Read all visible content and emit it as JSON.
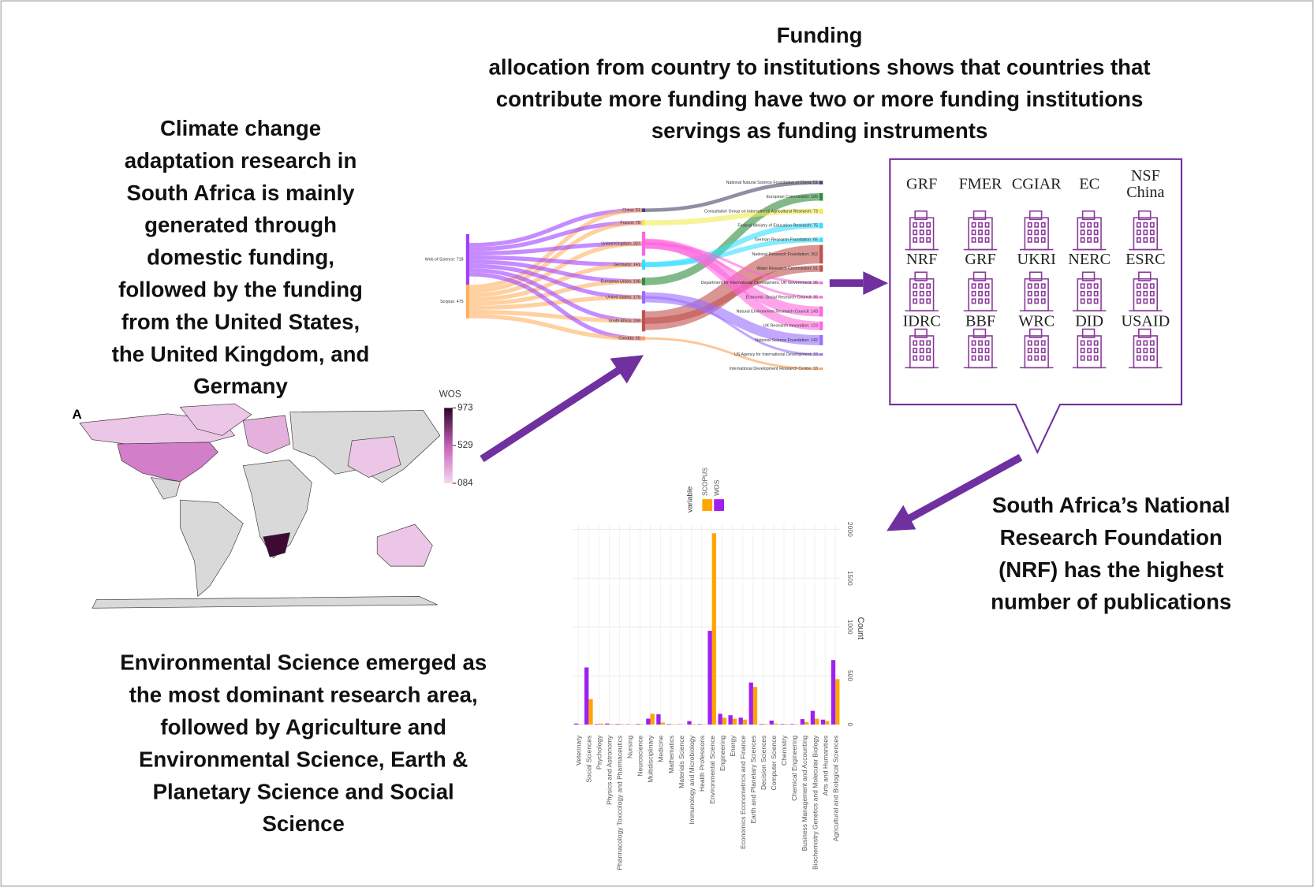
{
  "captions": {
    "funding": [
      "Funding",
      "allocation from country to institutions shows that countries that",
      "contribute more funding have two or more funding institutions",
      "servings as funding instruments"
    ],
    "climate": [
      "Climate change",
      "adaptation research in",
      "South Africa is mainly",
      "generated through",
      "domestic funding,",
      "followed by the funding",
      "from the United States,",
      "the United Kingdom, and",
      "Germany"
    ],
    "nrf": [
      "South Africa’s National",
      "Research Foundation",
      "(NRF) has the highest",
      "number of publications"
    ],
    "science": [
      "Environmental Science emerged as",
      "the most dominant research area,",
      "followed by Agriculture and",
      "Environmental Science, Earth &",
      "Planetary Science  and Social",
      "Science"
    ]
  },
  "sankey": {
    "sources": [
      {
        "label": "Web of Science: 718",
        "value": 718
      },
      {
        "label": "Scopus: 475",
        "value": 475
      }
    ],
    "countries": [
      {
        "label": "China: 51",
        "value": 51
      },
      {
        "label": "France: 79",
        "value": 79
      },
      {
        "label": "United Kingdom: 337",
        "value": 337
      },
      {
        "label": "Germany: 141",
        "value": 141
      },
      {
        "label": "European Union: 106",
        "value": 106
      },
      {
        "label": "United States: 175",
        "value": 175
      },
      {
        "label": "South Africa: 299",
        "value": 299
      },
      {
        "label": "Canada: 55",
        "value": 55
      }
    ],
    "institutions": [
      {
        "label": "National Natural Science Foundation of China: 51",
        "value": 51
      },
      {
        "label": "European Commission: 106",
        "value": 106
      },
      {
        "label": "Consultative Group on International Agricultural Research: 73",
        "value": 73
      },
      {
        "label": "Federal Ministry of Education Research: 75",
        "value": 75
      },
      {
        "label": "German Research Foundation: 65",
        "value": 65
      },
      {
        "label": "National Research Foundation: 262",
        "value": 262
      },
      {
        "label": "Water Research Commission: 91",
        "value": 91
      },
      {
        "label": "Department for International Development, UK Government: 36",
        "value": 36
      },
      {
        "label": "Economic Social Research Council: 35",
        "value": 35
      },
      {
        "label": "Natural Environment Research Council: 143",
        "value": 143
      },
      {
        "label": "UK Research Innovation: 123",
        "value": 123
      },
      {
        "label": "National Science Foundation: 142",
        "value": 142
      },
      {
        "label": "US Agency for International Development: 33",
        "value": 33
      },
      {
        "label": "International Development Research Centre: 33",
        "value": 33
      }
    ]
  },
  "institutions": {
    "labels": [
      [
        "GRF"
      ],
      [
        "FMER"
      ],
      [
        "CGIAR"
      ],
      [
        "EC"
      ],
      [
        "NSF",
        "China"
      ],
      [
        "NRF"
      ],
      [
        "GRF"
      ],
      [
        "UKRI"
      ],
      [
        "NERC"
      ],
      [
        "ESRC"
      ],
      [
        "IDRC"
      ],
      [
        "BBF"
      ],
      [
        "WRC"
      ],
      [
        "DID"
      ],
      [
        "USAID"
      ]
    ]
  },
  "map": {
    "panel": "A",
    "legend_title": "WOS",
    "ticks": [
      973,
      529,
      {
        "value": 84,
        "label": "084"
      }
    ]
  },
  "chart_data": {
    "type": "bar",
    "y_label": "Count",
    "legend_title": "variable",
    "categories": [
      "Veterinary",
      "Social Sciences",
      "Psychology",
      "Physics and Astronomy",
      "Pharmacology Toxicology and Pharmaceutics",
      "Nursing",
      "Neuroscience",
      "Multidisciplinary",
      "Medicine",
      "Mathematics",
      "Materials Science",
      "Immunology and Microbiology",
      "Health Professions",
      "Environmental Science",
      "Engineering",
      "Energy",
      "Economics Econometrics and Finance",
      "Earth and Planetary Sciences",
      "Decision Sciences",
      "Computer Science",
      "Chemistry",
      "Chemical Engineering",
      "Business Management and Accounting",
      "Biochemistry Genetics and Molecular Biology",
      "Arts and Humanities",
      "Agricultural and Biological Sciences"
    ],
    "series": [
      {
        "name": "SCOPUS",
        "color": "#ffa500",
        "values": [
          2,
          260,
          10,
          5,
          5,
          2,
          3,
          110,
          20,
          3,
          2,
          5,
          3,
          1960,
          70,
          60,
          50,
          385,
          5,
          10,
          5,
          3,
          25,
          60,
          35,
          465
        ]
      },
      {
        "name": "WOS",
        "color": "#a020f0",
        "values": [
          10,
          585,
          5,
          10,
          5,
          3,
          5,
          60,
          105,
          5,
          3,
          35,
          5,
          960,
          110,
          95,
          70,
          430,
          5,
          40,
          5,
          5,
          55,
          140,
          50,
          660
        ]
      }
    ],
    "ylim": [
      0,
      2060
    ],
    "yticks": [
      0,
      500,
      1000,
      1500,
      2000
    ],
    "grid": true
  }
}
